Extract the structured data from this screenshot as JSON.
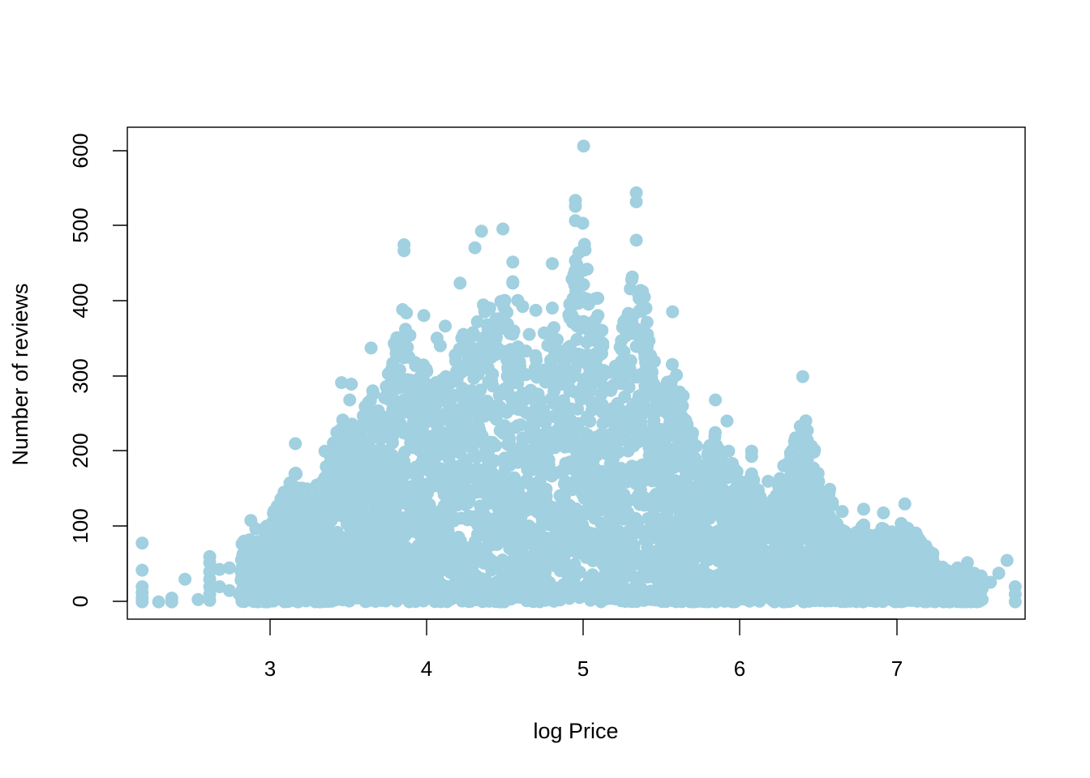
{
  "chart_data": {
    "type": "scatter",
    "title": "",
    "xlabel": "log Price",
    "ylabel": "Number of reviews",
    "xlim": [
      2.21,
      7.66
    ],
    "ylim": [
      -23,
      630
    ],
    "x_ticks": [
      "3",
      "4",
      "5",
      "6",
      "7"
    ],
    "y_ticks": [
      "0",
      "100",
      "200",
      "300",
      "400",
      "500",
      "600"
    ],
    "grid": false,
    "legend": "none",
    "point_color": "#a1d0e0",
    "series": [
      {
        "values": [
          [
            4.98,
            605
          ],
          [
            5.3,
            543
          ],
          [
            5.3,
            531
          ],
          [
            4.93,
            533
          ],
          [
            4.93,
            525
          ],
          [
            4.93,
            506
          ],
          [
            5.3,
            480
          ],
          [
            4.93,
            453
          ],
          [
            4.49,
            495
          ],
          [
            4.36,
            492
          ],
          [
            3.89,
            474
          ],
          [
            3.89,
            466
          ],
          [
            4.32,
            470
          ],
          [
            4.55,
            451
          ],
          [
            4.79,
            449
          ],
          [
            4.55,
            425
          ],
          [
            4.55,
            423
          ],
          [
            4.23,
            423
          ],
          [
            4.58,
            400
          ],
          [
            4.61,
            392
          ],
          [
            5.01,
            395
          ],
          [
            5.52,
            385
          ],
          [
            4.01,
            380
          ],
          [
            4.41,
            390
          ],
          [
            4.38,
            385
          ],
          [
            4.69,
            387
          ],
          [
            4.89,
            381
          ],
          [
            4.98,
            372
          ],
          [
            5.0,
            370
          ],
          [
            4.79,
            390
          ],
          [
            4.48,
            370
          ],
          [
            4.91,
            380
          ],
          [
            4.14,
            366
          ],
          [
            4.51,
            362
          ],
          [
            4.45,
            351
          ],
          [
            4.09,
            350
          ],
          [
            4.25,
            355
          ],
          [
            4.65,
            355
          ],
          [
            4.74,
            357
          ],
          [
            4.82,
            348
          ],
          [
            4.37,
            350
          ],
          [
            3.83,
            343
          ],
          [
            3.69,
            337
          ],
          [
            4.11,
            340
          ],
          [
            5.3,
            339
          ],
          [
            5.08,
            333
          ],
          [
            4.82,
            335
          ],
          [
            3.86,
            326
          ],
          [
            3.89,
            324
          ],
          [
            4.28,
            324
          ],
          [
            4.58,
            336
          ],
          [
            4.63,
            333
          ],
          [
            5.22,
            311
          ],
          [
            6.31,
            299
          ],
          [
            5.01,
            320
          ],
          [
            4.99,
            325
          ],
          [
            3.51,
            291
          ],
          [
            3.57,
            289
          ],
          [
            3.7,
            280
          ],
          [
            4.01,
            305
          ],
          [
            4.52,
            311
          ],
          [
            4.86,
            306
          ],
          [
            5.19,
            306
          ],
          [
            5.35,
            279
          ],
          [
            3.56,
            268
          ],
          [
            3.89,
            268
          ],
          [
            5.78,
            268
          ],
          [
            5.53,
            263
          ],
          [
            5.58,
            260
          ],
          [
            3.69,
            252
          ],
          [
            5.52,
            249
          ],
          [
            5.85,
            240
          ],
          [
            3.83,
            243
          ],
          [
            5.51,
            240
          ],
          [
            3.89,
            224
          ],
          [
            4.0,
            228
          ],
          [
            5.35,
            225
          ],
          [
            3.23,
            210
          ],
          [
            3.41,
            200
          ],
          [
            3.54,
            210
          ],
          [
            3.69,
            200
          ],
          [
            5.74,
            205
          ],
          [
            5.86,
            200
          ],
          [
            6.0,
            200
          ],
          [
            6.0,
            193
          ],
          [
            5.6,
            195
          ],
          [
            3.55,
            180
          ],
          [
            3.65,
            182
          ],
          [
            5.8,
            178
          ],
          [
            5.78,
            172
          ],
          [
            6.22,
            184
          ],
          [
            6.31,
            168
          ],
          [
            6.36,
            155
          ],
          [
            6.4,
            157
          ],
          [
            6.1,
            160
          ],
          [
            6.17,
            150
          ],
          [
            6.23,
            152
          ],
          [
            6.0,
            170
          ],
          [
            6.0,
            160
          ],
          [
            3.3,
            150
          ],
          [
            3.36,
            155
          ],
          [
            3.41,
            165
          ],
          [
            6.49,
            132
          ],
          [
            6.55,
            120
          ],
          [
            6.68,
            123
          ],
          [
            6.8,
            118
          ],
          [
            6.93,
            130
          ],
          [
            3.13,
            125
          ],
          [
            3.16,
            125
          ],
          [
            3.23,
            130
          ],
          [
            3.23,
            115
          ],
          [
            2.96,
            108
          ],
          [
            2.99,
            97
          ],
          [
            2.96,
            80
          ],
          [
            2.99,
            75
          ],
          [
            2.94,
            65
          ],
          [
            6.35,
            120
          ],
          [
            6.4,
            100
          ],
          [
            6.55,
            95
          ],
          [
            6.85,
            93
          ],
          [
            6.96,
            87
          ],
          [
            6.89,
            80
          ],
          [
            6.75,
            80
          ],
          [
            2.3,
            78
          ],
          [
            2.3,
            42
          ],
          [
            2.3,
            20
          ],
          [
            2.3,
            12
          ],
          [
            2.3,
            5
          ],
          [
            2.3,
            0
          ],
          [
            2.4,
            0
          ],
          [
            2.48,
            5
          ],
          [
            2.48,
            0
          ],
          [
            2.56,
            30
          ],
          [
            2.64,
            3
          ],
          [
            2.71,
            60
          ],
          [
            2.71,
            52
          ],
          [
            2.71,
            40
          ],
          [
            2.71,
            30
          ],
          [
            2.71,
            20
          ],
          [
            2.71,
            10
          ],
          [
            2.71,
            2
          ],
          [
            2.77,
            43
          ],
          [
            2.77,
            20
          ],
          [
            2.83,
            45
          ],
          [
            2.83,
            15
          ],
          [
            2.89,
            10
          ],
          [
            2.94,
            33
          ],
          [
            2.94,
            5
          ],
          [
            3.0,
            50
          ],
          [
            3.0,
            30
          ],
          [
            3.0,
            10
          ],
          [
            3.04,
            18
          ],
          [
            3.09,
            40
          ],
          [
            3.09,
            25
          ],
          [
            3.14,
            57
          ],
          [
            3.18,
            80
          ],
          [
            3.23,
            82
          ],
          [
            3.26,
            60
          ],
          [
            7.6,
            20
          ],
          [
            7.6,
            10
          ],
          [
            7.6,
            0
          ],
          [
            7.55,
            55
          ],
          [
            7.5,
            38
          ],
          [
            7.45,
            26
          ],
          [
            7.4,
            18
          ],
          [
            7.36,
            8
          ],
          [
            7.31,
            52
          ],
          [
            7.31,
            30
          ],
          [
            7.25,
            45
          ],
          [
            7.2,
            25
          ],
          [
            7.15,
            30
          ],
          [
            7.1,
            64
          ],
          [
            7.09,
            48
          ],
          [
            7.05,
            20
          ],
          [
            7.0,
            36
          ],
          [
            6.95,
            25
          ],
          [
            6.9,
            60
          ],
          [
            6.85,
            40
          ],
          [
            6.8,
            28
          ],
          [
            6.72,
            70
          ],
          [
            6.68,
            50
          ],
          [
            6.6,
            60
          ],
          [
            6.55,
            40
          ],
          [
            6.5,
            55
          ]
        ]
      }
    ]
  }
}
